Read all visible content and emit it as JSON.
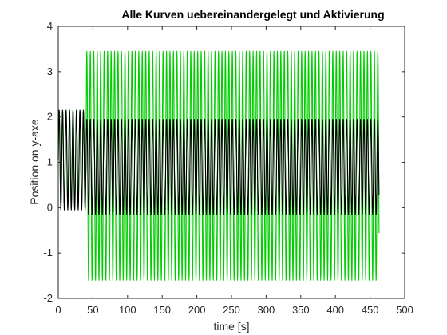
{
  "chart_data": {
    "type": "line",
    "title": "Alle Kurven uebereinandergelegt und Aktivierung",
    "xlabel": "time [s]",
    "ylabel": "Position on y-axe",
    "xlim": [
      0,
      500
    ],
    "ylim": [
      -2,
      4
    ],
    "x_ticks": [
      0,
      50,
      100,
      150,
      200,
      250,
      300,
      350,
      400,
      450,
      500
    ],
    "y_ticks": [
      -2,
      -1,
      0,
      1,
      2,
      3,
      4
    ],
    "grid": false,
    "series": [
      {
        "color": "#00cc00",
        "x_start": 0,
        "x_end": 463,
        "period": 5,
        "phase_segments": [
          {
            "x": [
              0,
              40
            ],
            "min": 0.05,
            "max": 2.15
          },
          {
            "x": [
              40,
              463
            ],
            "min": -1.6,
            "max": 3.45
          }
        ]
      },
      {
        "color": "#000000",
        "x_start": 0,
        "x_end": 463,
        "period": 5,
        "phase_segments": [
          {
            "x": [
              0,
              40
            ],
            "min": -0.05,
            "max": 2.15
          },
          {
            "x": [
              40,
              463
            ],
            "min": -0.15,
            "max": 1.95
          }
        ]
      }
    ]
  }
}
